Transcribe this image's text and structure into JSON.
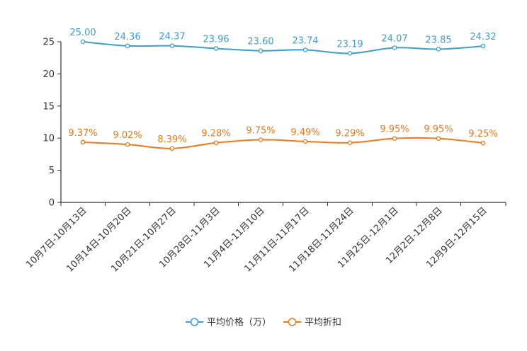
{
  "chart_data": {
    "type": "line",
    "title": "",
    "xlabel": "",
    "ylabel": "",
    "ylim": [
      0,
      25
    ],
    "yticks": [
      0,
      5,
      10,
      15,
      20,
      25
    ],
    "grid": false,
    "legend_position": "bottom-center",
    "categories": [
      "10月7日-10月13日",
      "10月14日-10月20日",
      "10月21日-10月27日",
      "10月28日-11月3日",
      "11月4日-11月10日",
      "11月11日-11月17日",
      "11月18日-11月24日",
      "11月25日-12月1日",
      "12月2日-12月8日",
      "12月9日-12月15日"
    ],
    "series": [
      {
        "name": "平均价格（万）",
        "color": "#3b9fd1",
        "values": [
          25.0,
          24.36,
          24.37,
          23.96,
          23.6,
          23.74,
          23.19,
          24.07,
          23.85,
          24.32
        ],
        "labels": [
          "25.00",
          "24.36",
          "24.37",
          "23.96",
          "23.60",
          "23.74",
          "23.19",
          "24.07",
          "23.85",
          "24.32"
        ]
      },
      {
        "name": "平均折扣",
        "color": "#f07818",
        "values": [
          9.37,
          9.02,
          8.39,
          9.28,
          9.75,
          9.49,
          9.29,
          9.95,
          9.95,
          9.25
        ],
        "labels": [
          "9.37%",
          "9.02%",
          "8.39%",
          "9.28%",
          "9.75%",
          "9.49%",
          "9.29%",
          "9.95%",
          "9.95%",
          "9.25%"
        ]
      }
    ]
  }
}
